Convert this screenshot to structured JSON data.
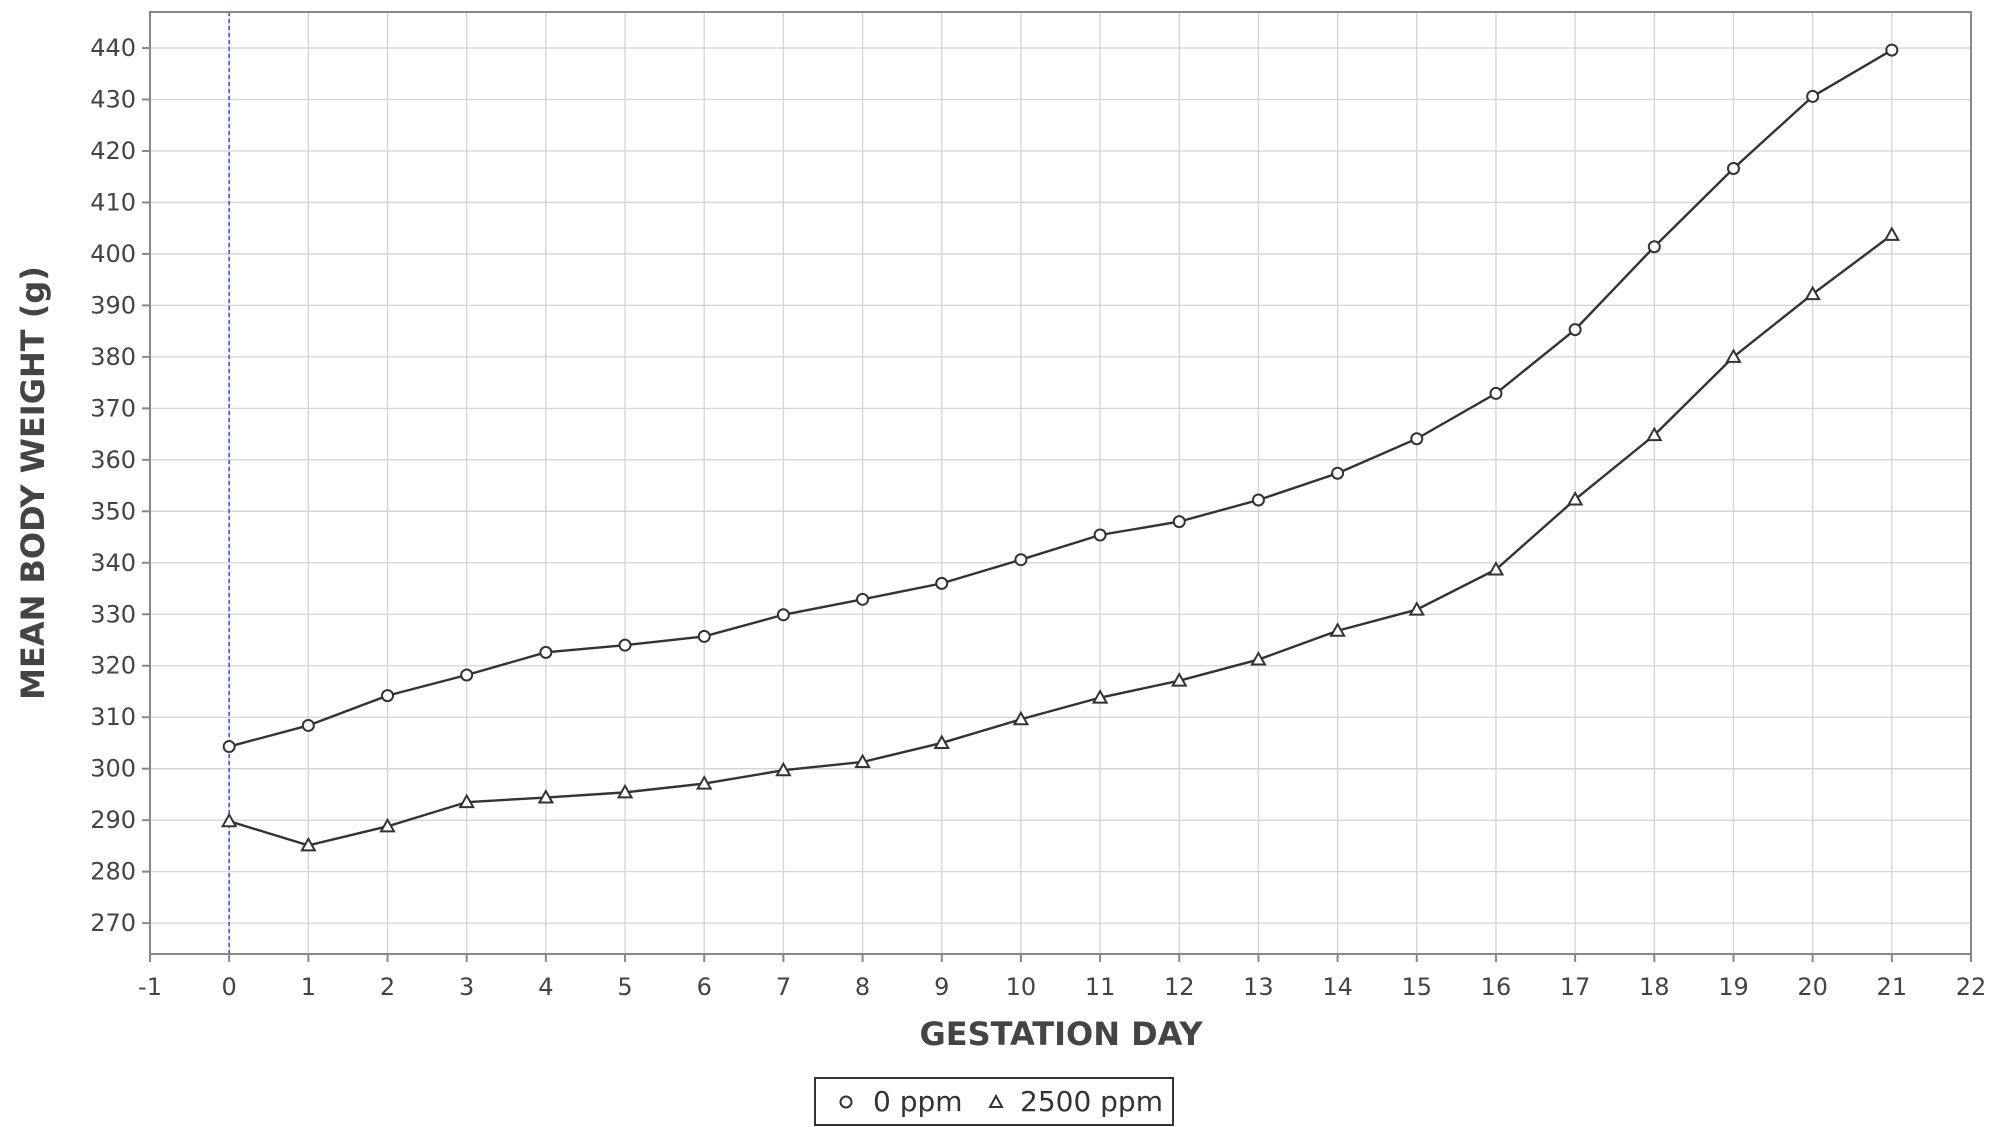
{
  "chart_data": {
    "type": "line",
    "xlabel": "GESTATION DAY",
    "ylabel": "MEAN BODY WEIGHT (g)",
    "xlim": [
      -1,
      22
    ],
    "ylim": [
      264,
      447
    ],
    "x_ticks": [
      -1,
      0,
      1,
      2,
      3,
      4,
      5,
      6,
      7,
      8,
      9,
      10,
      11,
      12,
      13,
      14,
      15,
      16,
      17,
      18,
      19,
      20,
      21,
      22
    ],
    "y_ticks": [
      270,
      280,
      290,
      300,
      310,
      320,
      330,
      340,
      350,
      360,
      370,
      380,
      390,
      400,
      410,
      420,
      430,
      440
    ],
    "grid": true,
    "reference_line_x": 0,
    "reference_line_color": "#3355ff",
    "legend_position": "bottom-center",
    "x": [
      0,
      1,
      2,
      3,
      4,
      5,
      6,
      7,
      8,
      9,
      10,
      11,
      12,
      13,
      14,
      15,
      16,
      17,
      18,
      19,
      20,
      21
    ],
    "series": [
      {
        "name": "0 ppm",
        "marker": "circle",
        "color": "#333333",
        "values": [
          304.3,
          308.4,
          314.2,
          318.2,
          322.6,
          324.0,
          325.7,
          329.9,
          332.9,
          336.0,
          340.6,
          345.4,
          348.0,
          352.2,
          357.4,
          364.1,
          372.9,
          385.3,
          401.4,
          416.6,
          430.6,
          439.6
        ]
      },
      {
        "name": "2500 ppm",
        "marker": "triangle",
        "color": "#333333",
        "values": [
          289.8,
          285.1,
          288.8,
          293.5,
          294.4,
          295.4,
          297.1,
          299.7,
          301.3,
          305.0,
          309.6,
          313.8,
          317.1,
          321.2,
          326.8,
          330.9,
          338.7,
          352.3,
          364.8,
          380.0,
          392.2,
          403.7
        ]
      }
    ]
  }
}
